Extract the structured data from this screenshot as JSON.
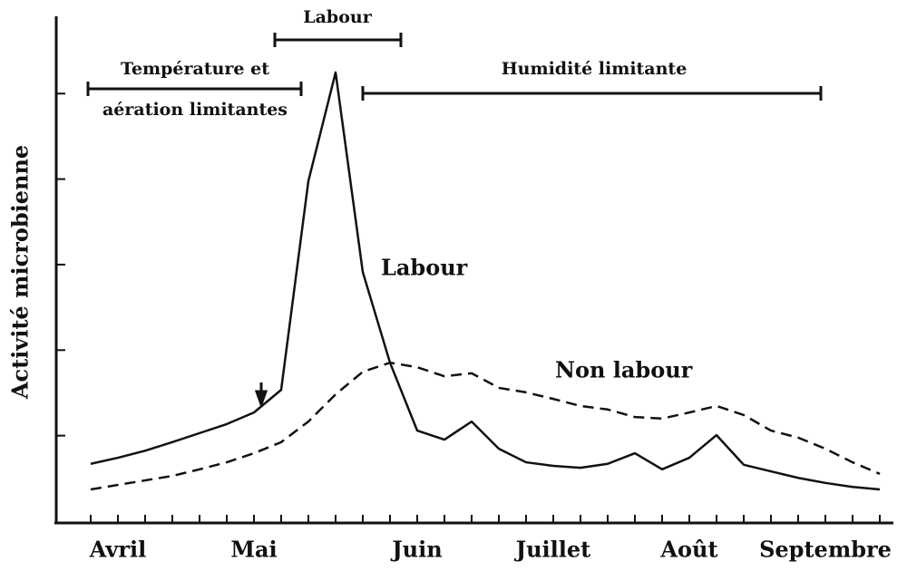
{
  "chart_data": {
    "type": "line",
    "y_label": "Activité microbienne",
    "categories": [
      null,
      "Avril",
      null,
      null,
      null,
      null,
      "Mai",
      null,
      null,
      null,
      null,
      null,
      "Juin",
      null,
      null,
      null,
      null,
      "Juillet",
      null,
      null,
      null,
      null,
      "Août",
      null,
      null,
      null,
      null,
      "Septembre",
      null,
      null
    ],
    "series": [
      {
        "name": "Labour",
        "color": "#111111",
        "dash": false,
        "values": [
          11.4,
          12.6,
          14,
          15.7,
          17.5,
          19.3,
          21.6,
          26.1,
          67.6,
          89.2,
          49.5,
          31.5,
          18,
          16.2,
          19.8,
          14.4,
          11.7,
          11,
          10.6,
          11.4,
          13.5,
          10.3,
          12.6,
          17.1,
          11.2,
          9.9,
          8.6,
          7.6,
          6.8,
          6.3
        ]
      },
      {
        "name": "Non labour",
        "color": "#111111",
        "dash": true,
        "values": [
          6.3,
          7.2,
          8.1,
          9,
          10.3,
          11.7,
          13.5,
          15.7,
          19.8,
          25.2,
          29.7,
          31.5,
          30.6,
          28.8,
          29.4,
          26.5,
          25.6,
          24.3,
          22.9,
          22.2,
          20.7,
          20.4,
          21.6,
          22.9,
          21.1,
          18,
          16.6,
          14.4,
          11.7,
          9.4
        ]
      }
    ],
    "annotations": [
      "Labour",
      "Température et",
      "aération limitantes",
      "Humidité limitante"
    ],
    "ylim": [
      0,
      100
    ],
    "yticks": [
      17,
      34,
      51,
      68,
      85
    ]
  }
}
